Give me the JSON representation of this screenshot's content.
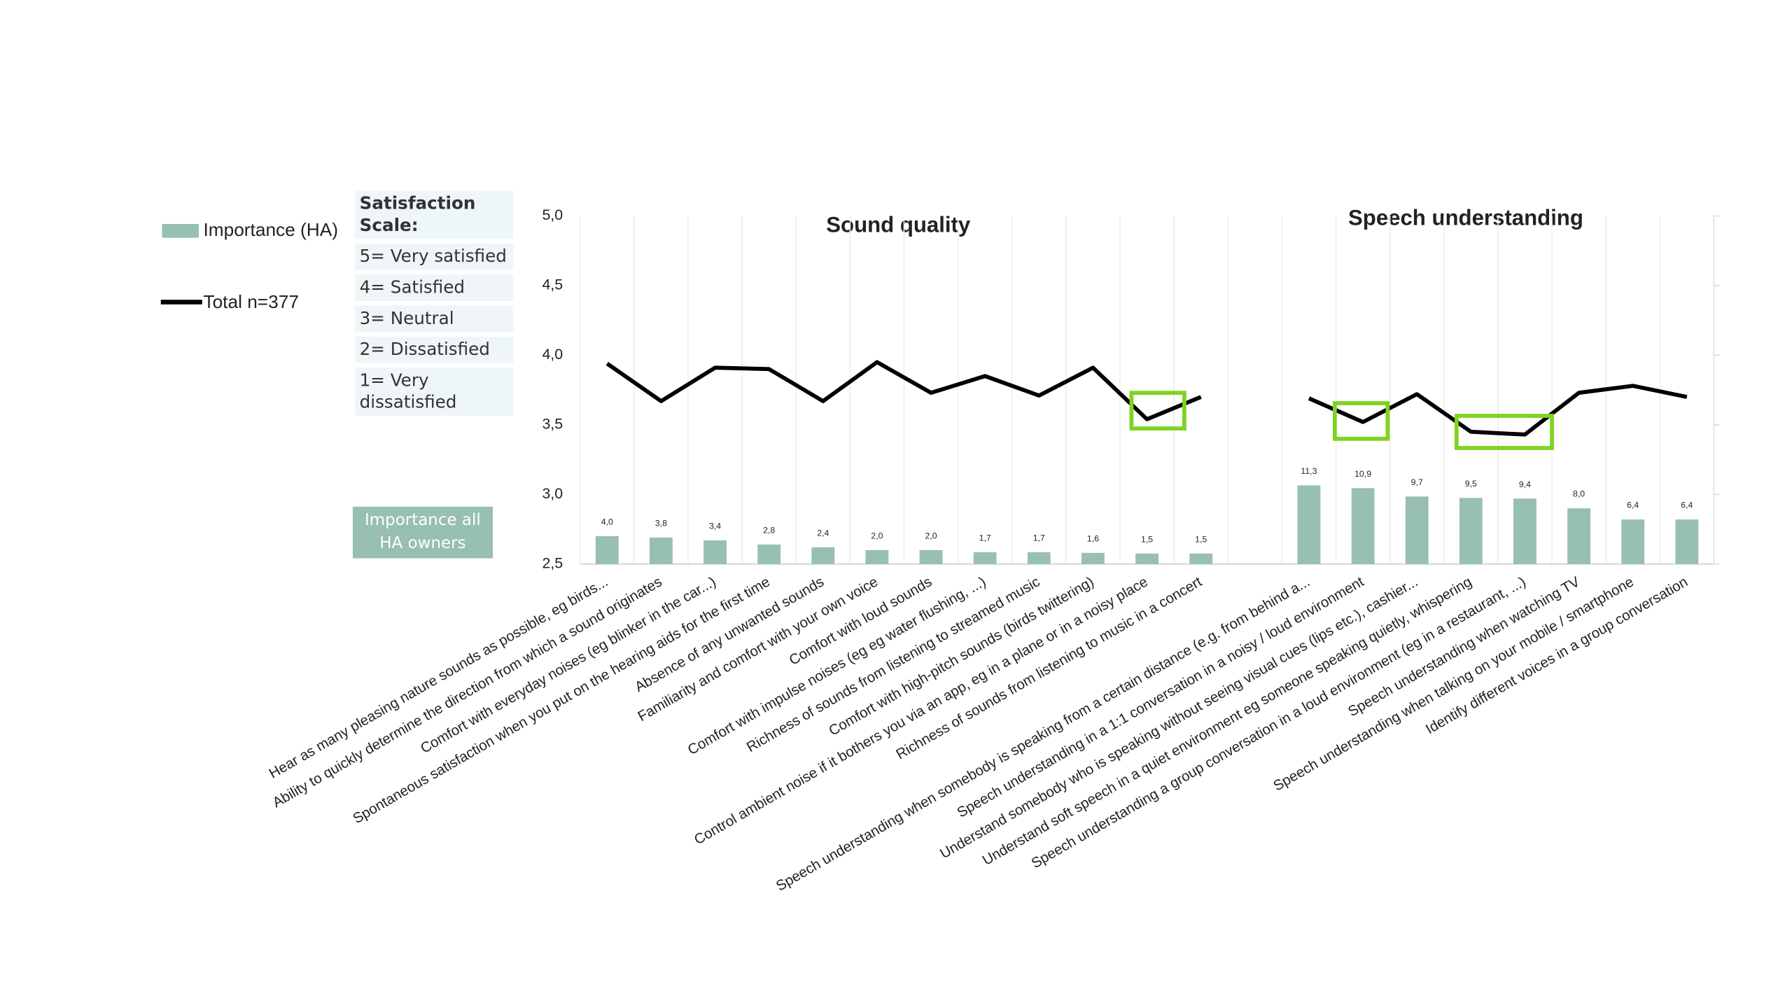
{
  "chart_data": {
    "type": "combo",
    "section_titles": [
      "Sound quality",
      "Speech understanding"
    ],
    "scale_title": "Satisfaction Scale:",
    "scale_items": [
      "5= Very satisfied",
      "4= Satisfied",
      "3= Neutral",
      "2= Dissatisfied",
      "1= Very dissatisfied"
    ],
    "note": "Importance all HA owners",
    "categories": [
      "Hear as many pleasing nature sounds as possible, eg birds...",
      "Ability to quickly determine the direction from which a sound originates",
      "Comfort with everyday noises  (eg blinker in the car...)",
      "Spontaneous satisfaction when you put on the hearing aids for the first time",
      "Absence of any unwanted sounds",
      "Familiarity and comfort with your own voice",
      "Comfort with loud sounds",
      "Comfort with impulse noises (eg eg water flushing, ...)",
      "Richness of sounds from listening to  streamed music",
      "Comfort with high-pitch sounds (birds twittering)",
      "Control ambient noise if it bothers you via an app, eg in a plane or in a noisy place",
      "Richness of sounds from listening to music in a concert",
      null,
      "Speech understanding when somebody is speaking from a certain distance  (e.g. from behind a...",
      "Speech understanding in a 1:1 conversation in a noisy / loud environment",
      "Understand somebody who is speaking without seeing visual cues (lips etc.), cashier...",
      "Understand soft speech in a quiet environment eg someone speaking quietly, whispering",
      "Speech understanding a group conversation in a loud environment (eg in a restaurant, ...)",
      "Speech understanding when watching TV",
      "Speech understanding when talking on your mobile / smartphone",
      "Identify different voices in a group conversation"
    ],
    "series": [
      {
        "name": "Importance (HA)",
        "type": "bar",
        "axis": "y2",
        "color": "#97bfb2",
        "values": [
          4.0,
          3.8,
          3.4,
          2.8,
          2.4,
          2.0,
          2.0,
          1.7,
          1.7,
          1.6,
          1.5,
          1.5,
          null,
          11.3,
          10.9,
          9.7,
          9.5,
          9.4,
          8.0,
          6.4,
          6.4
        ],
        "value_labels": [
          "4,0",
          "3,8",
          "3,4",
          "2,8",
          "2,4",
          "2,0",
          "2,0",
          "1,7",
          "1,7",
          "1,6",
          "1,5",
          "1,5",
          null,
          "11,3",
          "10,9",
          "9,7",
          "9,5",
          "9,4",
          "8,0",
          "6,4",
          "6,4"
        ]
      },
      {
        "name": "Total n=377",
        "type": "line",
        "color": "#000000",
        "values": [
          3.94,
          3.67,
          3.91,
          3.9,
          3.67,
          3.95,
          3.73,
          3.85,
          3.71,
          3.91,
          3.54,
          3.7,
          null,
          3.69,
          3.52,
          3.72,
          3.45,
          3.43,
          3.73,
          3.78,
          3.7
        ]
      }
    ],
    "ylim": [
      2.5,
      5.0
    ],
    "yticks": [
      {
        "value": 2.5,
        "label": "2,5"
      },
      {
        "value": 3.0,
        "label": "3,0"
      },
      {
        "value": 3.5,
        "label": "3,5"
      },
      {
        "value": 4.0,
        "label": "4,0"
      },
      {
        "value": 4.5,
        "label": "4,5"
      },
      {
        "value": 5.0,
        "label": "5,0"
      }
    ],
    "y2lim": [
      0,
      50
    ],
    "grid": true
  }
}
